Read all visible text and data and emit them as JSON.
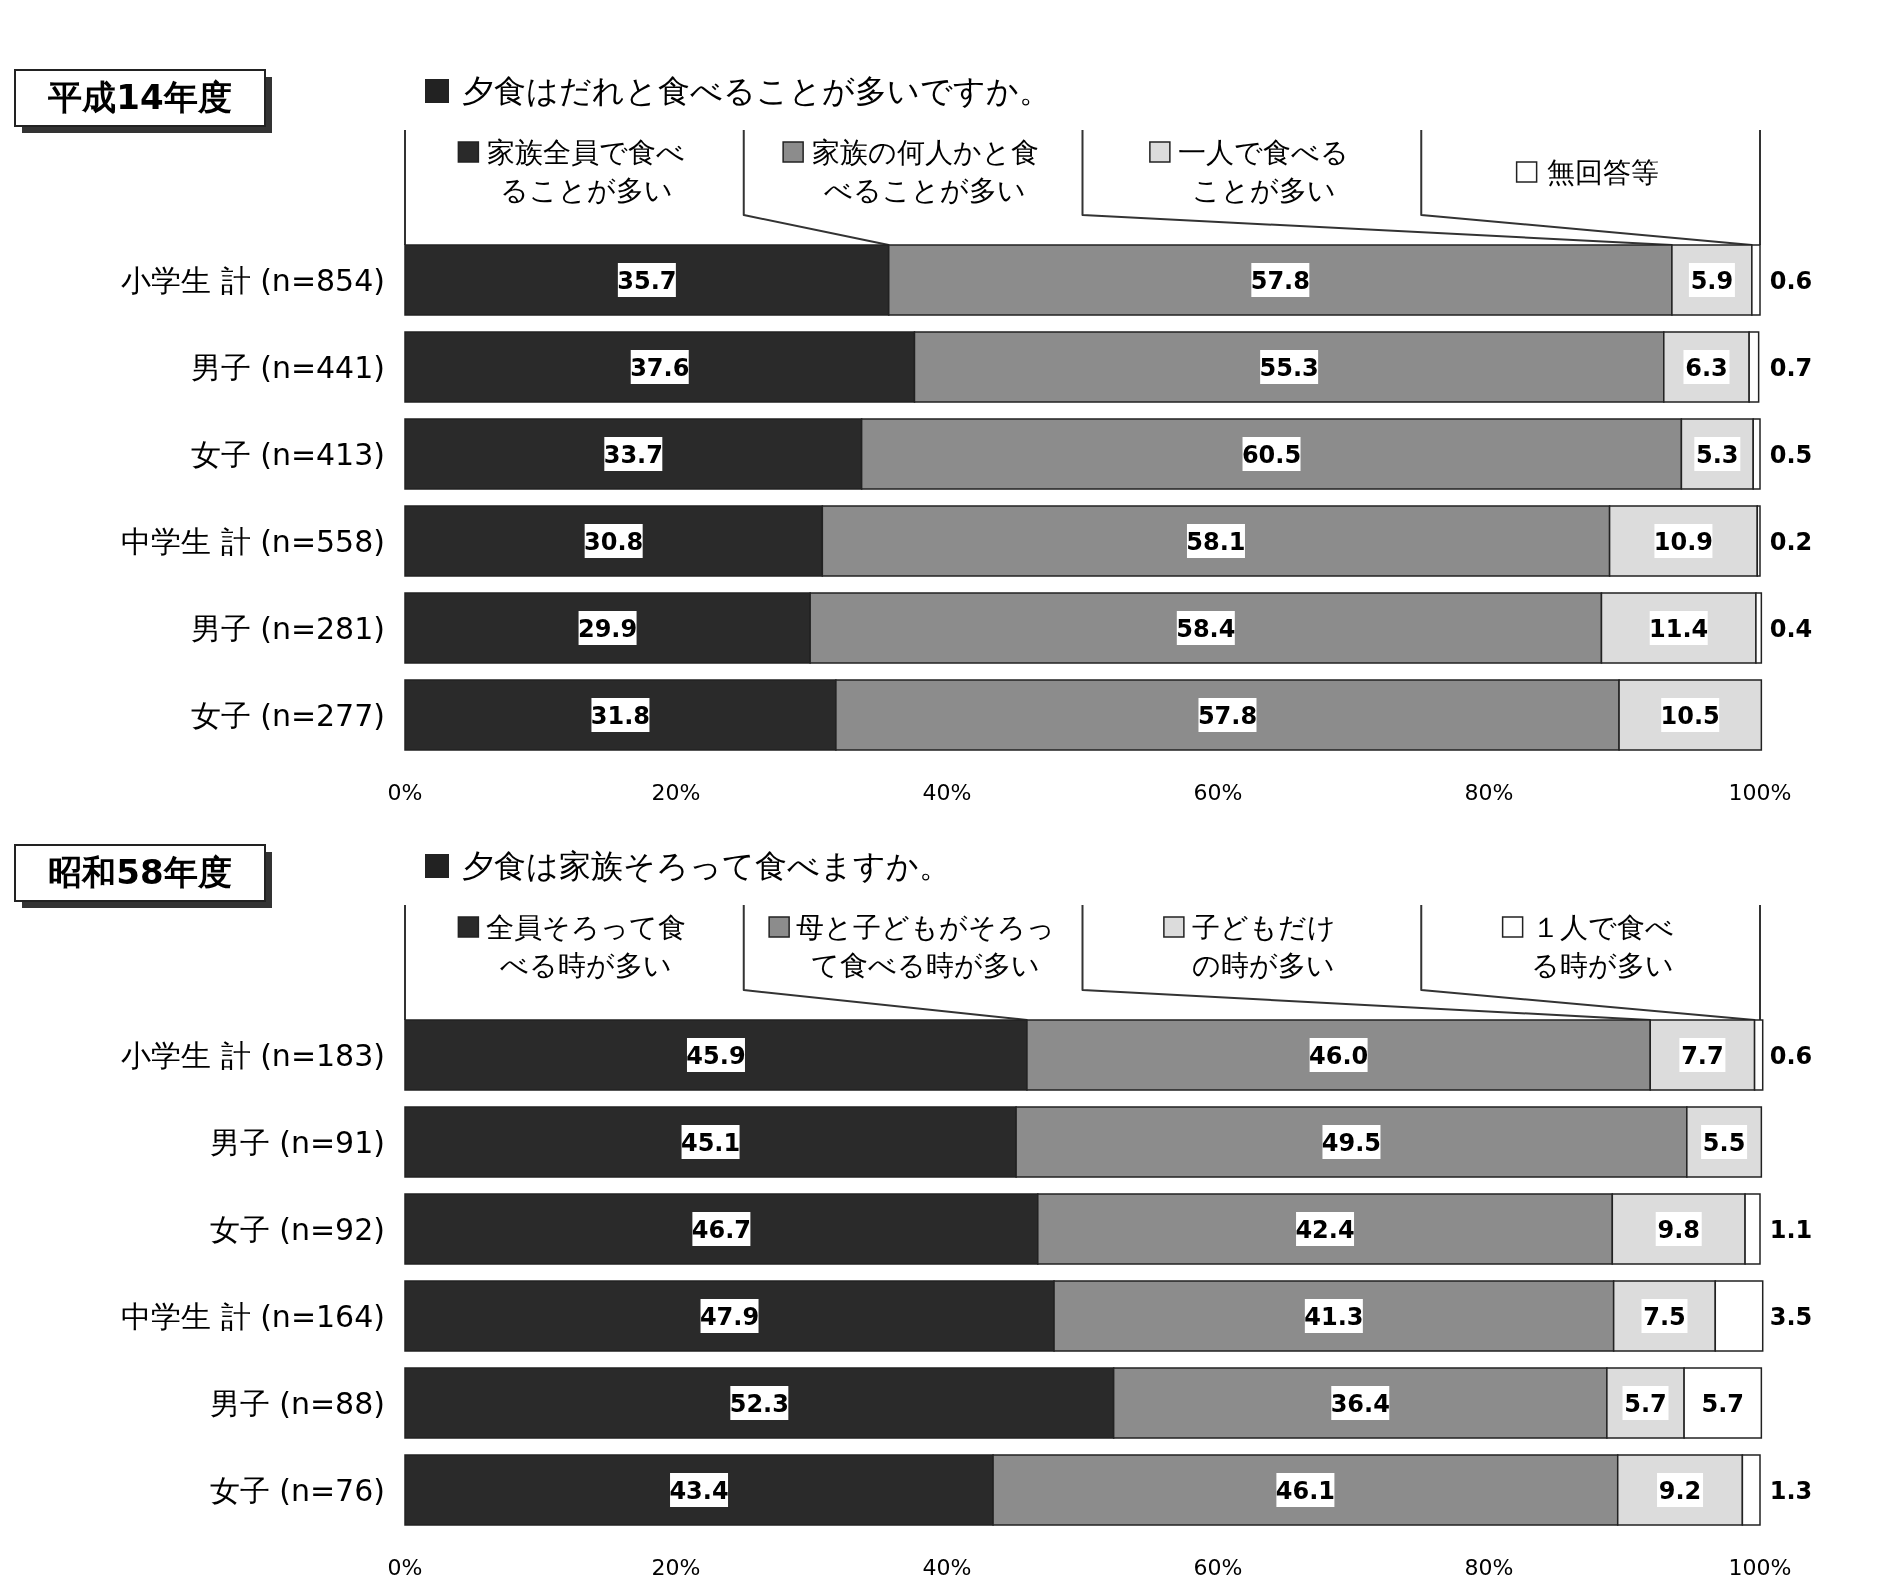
{
  "chart_data": [
    {
      "type": "bar",
      "orientation": "horizontal",
      "stacked": true,
      "legend": "top",
      "title": "平成14年度",
      "subtitle": "夕食はだれと食べることが多いですか。",
      "categories": [
        "小学生 計 (n=854)",
        "男子 (n=441)",
        "女子 (n=413)",
        "中学生 計 (n=558)",
        "男子 (n=281)",
        "女子 (n=277)"
      ],
      "series": [
        {
          "name": "家族全員で食べることが多い",
          "color": "#2a2a2a",
          "values": [
            35.7,
            37.6,
            33.7,
            30.8,
            29.9,
            31.8
          ],
          "value_labels": [
            "35.7",
            "37.6",
            "33.7",
            "30.8",
            "29.9",
            "31.8"
          ]
        },
        {
          "name": "家族の何人かと食べることが多い",
          "color": "#8c8c8c",
          "values": [
            57.8,
            55.3,
            60.5,
            58.1,
            58.4,
            57.8
          ],
          "value_labels": [
            "57.8",
            "55.3",
            "60.5",
            "58.1",
            "58.4",
            "57.8"
          ]
        },
        {
          "name": "一人で食べることが多い",
          "color": "#dcdcdc",
          "values": [
            5.9,
            6.3,
            5.3,
            10.9,
            11.4,
            10.5
          ],
          "value_labels": [
            "5.9",
            "6.3",
            "5.3",
            "10.9",
            "11.4",
            "10.5"
          ]
        },
        {
          "name": "無回答等",
          "color": "#ffffff",
          "values": [
            0.6,
            0.7,
            0.5,
            0.2,
            0.4,
            null
          ],
          "value_labels": [
            "0.6",
            "0.7",
            "0.5",
            "0.2",
            "0.4",
            null
          ]
        }
      ],
      "xlim": [
        0,
        100
      ],
      "xticks": [
        {
          "value": 0,
          "label": "0%"
        },
        {
          "value": 20,
          "label": "20%"
        },
        {
          "value": 40,
          "label": "40%"
        },
        {
          "value": 60,
          "label": "60%"
        },
        {
          "value": 80,
          "label": "80%"
        },
        {
          "value": 100,
          "label": "100%"
        }
      ]
    },
    {
      "type": "bar",
      "orientation": "horizontal",
      "stacked": true,
      "legend": "top",
      "title": "昭和58年度",
      "subtitle": "夕食は家族そろって食べますか。",
      "categories": [
        "小学生 計 (n=183)",
        "男子 (n=91)",
        "女子 (n=92)",
        "中学生 計 (n=164)",
        "男子 (n=88)",
        "女子 (n=76)"
      ],
      "series": [
        {
          "name": "全員そろって食べる時が多い",
          "color": "#2a2a2a",
          "values": [
            45.9,
            45.1,
            46.7,
            47.9,
            52.3,
            43.4
          ],
          "value_labels": [
            "45.9",
            "45.1",
            "46.7",
            "47.9",
            "52.3",
            "43.4"
          ]
        },
        {
          "name": "母と子どもがそろって食べる時が多い",
          "color": "#8c8c8c",
          "values": [
            46.0,
            49.5,
            42.4,
            41.3,
            36.4,
            46.1
          ],
          "value_labels": [
            "46.0",
            "49.5",
            "42.4",
            "41.3",
            "36.4",
            "46.1"
          ]
        },
        {
          "name": "子どもだけの時が多い",
          "color": "#dcdcdc",
          "values": [
            7.7,
            5.5,
            9.8,
            7.5,
            5.7,
            9.2
          ],
          "value_labels": [
            "7.7",
            "5.5",
            "9.8",
            "7.5",
            "5.7",
            "9.2"
          ]
        },
        {
          "name": "１人で食べる時が多い",
          "color": "#ffffff",
          "values": [
            0.6,
            null,
            1.1,
            3.5,
            5.7,
            1.3
          ],
          "value_labels": [
            "0.6",
            null,
            "1.1",
            "3.5",
            "5.7",
            "1.3"
          ]
        }
      ],
      "xlim": [
        0,
        100
      ],
      "xticks": [
        {
          "value": 0,
          "label": "0%"
        },
        {
          "value": 20,
          "label": "20%"
        },
        {
          "value": 40,
          "label": "40%"
        },
        {
          "value": 60,
          "label": "60%"
        },
        {
          "value": 80,
          "label": "80%"
        },
        {
          "value": 100,
          "label": "100%"
        }
      ]
    }
  ]
}
